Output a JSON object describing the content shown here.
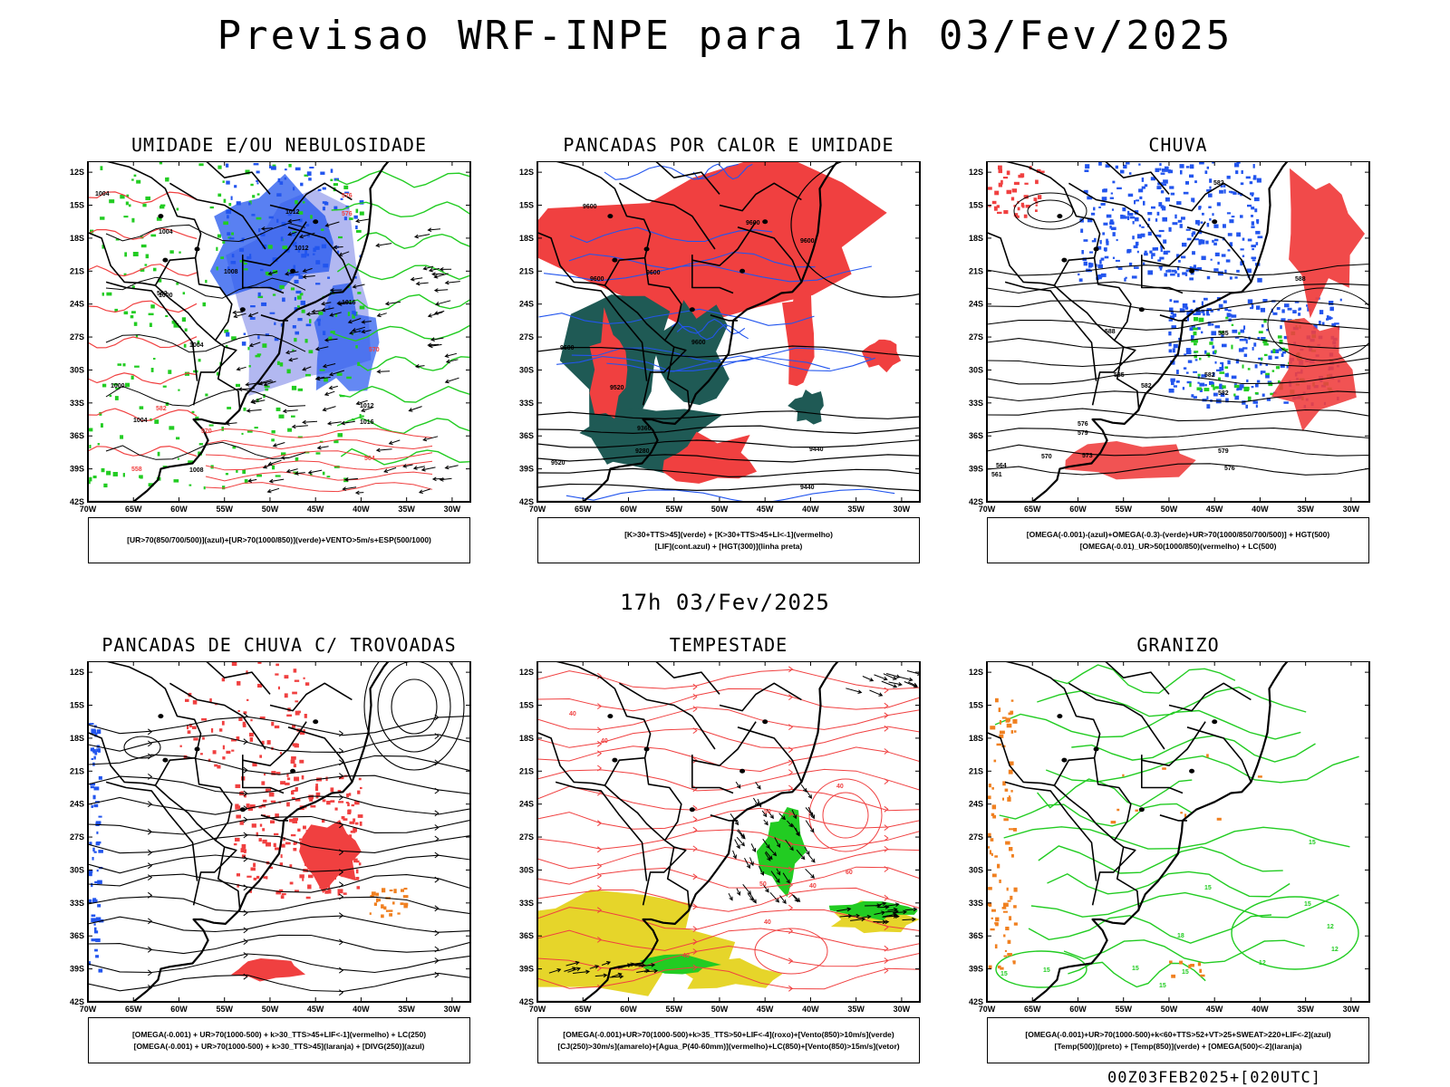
{
  "title": "Previsao WRF-INPE  para 17h 03/Fev/2025",
  "mid_title": "17h 03/Fev/2025",
  "footer": "00Z03FEB2025+[020UTC]",
  "axes": {
    "lat_labels": [
      "12S",
      "15S",
      "18S",
      "21S",
      "24S",
      "27S",
      "30S",
      "33S",
      "36S",
      "39S",
      "42S"
    ],
    "lon_labels": [
      "70W",
      "65W",
      "60W",
      "55W",
      "50W",
      "45W",
      "40W",
      "35W",
      "30W"
    ]
  },
  "colors": {
    "green": "#22cc22",
    "blue": "#2255ee",
    "light_blue": "#aab0f0",
    "red": "#f04040",
    "dark_teal": "#1f5a55",
    "yellow": "#e6d52a",
    "orange": "#f08020"
  },
  "panels": [
    {
      "title": "UMIDADE E/OU NEBULOSIDADE",
      "legend": [
        "[UR>70(850/700/500)](azul)+[UR>70(1000/850)](verde)+VENTO>5m/s+ESP(500/1000)"
      ],
      "contour_labels": [
        "1004",
        "1012",
        "1012",
        "1004",
        "1008",
        "1000",
        "1004",
        "1000",
        "1016",
        "1012",
        "1016",
        "1004",
        "1008",
        "582",
        "582",
        "570",
        "576",
        "576",
        "570",
        "564",
        "558"
      ]
    },
    {
      "title": "PANCADAS POR CALOR E UMIDADE",
      "legend": [
        "[K>30+TTS>45](verde) + [K>30+TTS>45+LI<-1](vermelho)",
        "[LIF](cont.azul) + [HGT(300)](linha preta)"
      ],
      "contour_labels": [
        "9600",
        "9600",
        "9600",
        "9600",
        "9600",
        "9600",
        "9600",
        "9520",
        "9440",
        "9360",
        "9280",
        "9520",
        "9440"
      ]
    },
    {
      "title": "CHUVA",
      "legend": [
        "[OMEGA(-0.001)-(azul)+OMEGA(-0.3)-(verde)+UR>70(1000/850/700/500)] + HGT(500)",
        "[OMEGA(-0.01)_UR>50(1000/850)(vermelho) + LC(500)"
      ],
      "contour_labels": [
        "582",
        "588",
        "588",
        "582",
        "585",
        "585",
        "582",
        "576",
        "579",
        "573",
        "570",
        "564",
        "561",
        "579",
        "576",
        "582"
      ]
    },
    {
      "title": "PANCADAS DE CHUVA C/ TROVOADAS",
      "legend": [
        "[OMEGA(-0.001) + UR>70(1000-500) + k>30_TTS>45+LIF<-1](vermelho) + LC(250)",
        "[OMEGA(-0.001) + UR>70(1000-500) + k>30_TTS>45](laranja) + [DIVG(250)](azul)"
      ],
      "contour_labels": []
    },
    {
      "title": "TEMPESTADE",
      "legend": [
        "[OMEGA(-0.001)+UR>70(1000-500)+k>35_TTS>50+LIF<-4](roxo)+[Vento(850)>10m/s](verde)",
        "[CJ(250)>30m/s](amarelo)+[Agua_P(40-60mm)](vermelho)+LC(850)+[Vento(850)>15m/s](vetor)"
      ],
      "contour_labels": [
        "40",
        "40",
        "50",
        "40",
        "40",
        "60",
        "50",
        "40",
        "40"
      ]
    },
    {
      "title": "GRANIZO",
      "legend": [
        "[OMEGA(-0.001)+UR>70(1000-500)+k<60+TTS>52+VT>25+SWEAT>220+LIF<-2](azul)",
        "[Temp(500)](preto) + [Temp(850)](verde) + [OMEGA(500)<-2](laranja)"
      ],
      "contour_labels": [
        "15",
        "15",
        "12",
        "15",
        "12",
        "15",
        "18",
        "15",
        "15",
        "12",
        "15",
        "15"
      ]
    }
  ]
}
